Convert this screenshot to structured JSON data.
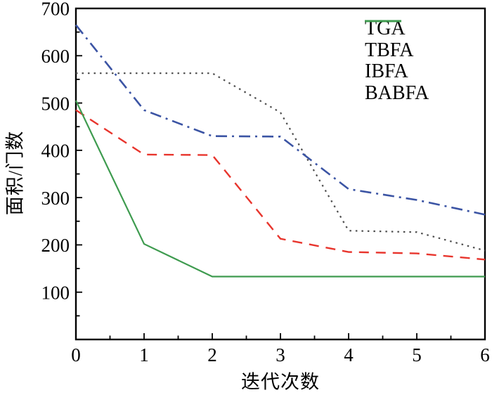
{
  "figure": {
    "background": "#ffffff",
    "frame_color": "#000000",
    "text_color": "#000000"
  },
  "chart_data": {
    "type": "line",
    "title": "",
    "xlabel": "迭代次数",
    "ylabel": "面积/门数",
    "xlim": [
      0,
      6
    ],
    "ylim": [
      0,
      700
    ],
    "x_ticks": [
      0,
      1,
      2,
      3,
      4,
      5,
      6
    ],
    "y_ticks": [
      100,
      200,
      300,
      400,
      500,
      600,
      700
    ],
    "x_minor_step": 0.5,
    "y_minor_step": 50,
    "grid": false,
    "legend_position": "top-right-inside",
    "x": [
      0,
      1,
      2,
      3,
      4,
      5,
      6
    ],
    "series": [
      {
        "name": "TGA",
        "color": "#4d4d4d",
        "style": "dotted",
        "values": [
          563,
          563,
          563,
          480,
          230,
          227,
          188
        ]
      },
      {
        "name": "TBFA",
        "color": "#e8352d",
        "style": "dashed",
        "values": [
          485,
          391,
          390,
          213,
          185,
          182,
          169
        ]
      },
      {
        "name": "IBFA",
        "color": "#3b54a4",
        "style": "dashdot",
        "values": [
          665,
          485,
          430,
          429,
          318,
          295,
          264
        ]
      },
      {
        "name": "BABFA",
        "color": "#3e9b4f",
        "style": "solid",
        "values": [
          505,
          202,
          133,
          133,
          133,
          133,
          133
        ]
      }
    ]
  }
}
